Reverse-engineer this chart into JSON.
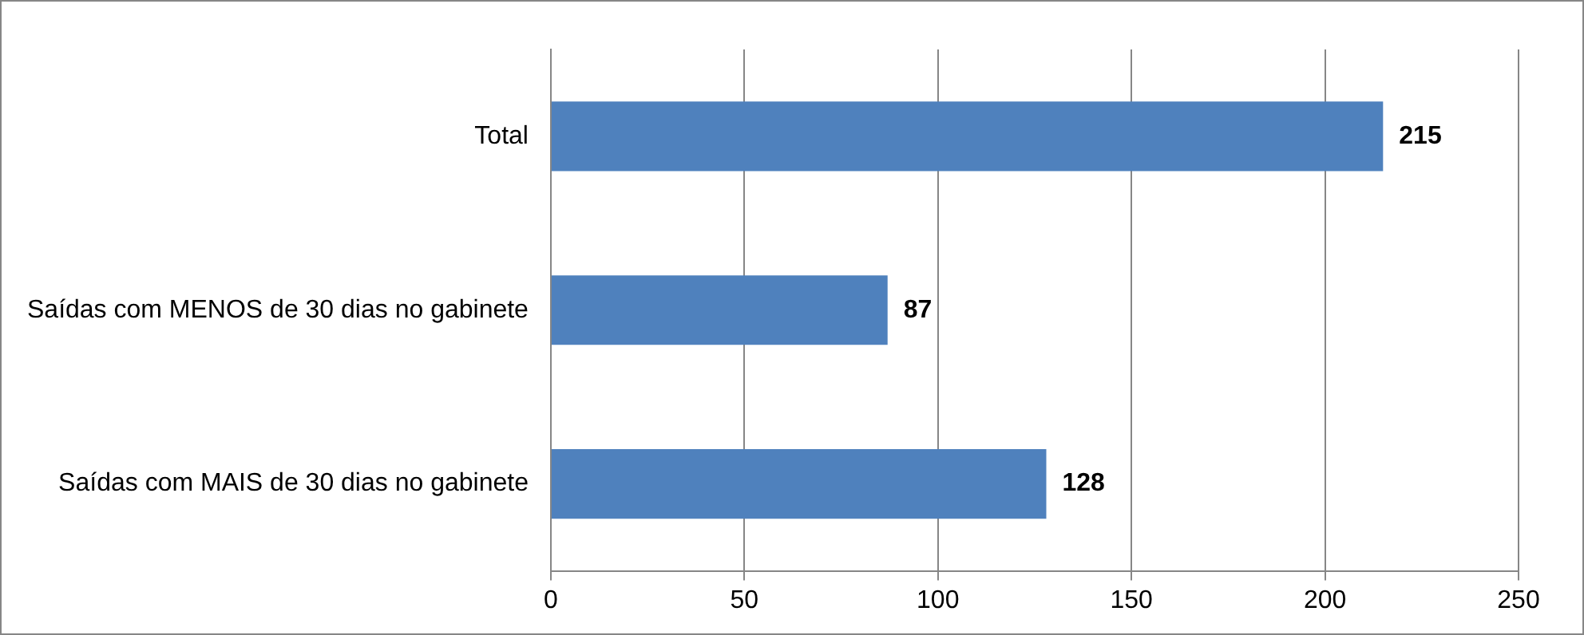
{
  "chart_data": {
    "type": "bar",
    "orientation": "horizontal",
    "categories": [
      "Total",
      "Saídas com MENOS de 30 dias no gabinete",
      "Saídas com MAIS de 30 dias no gabinete"
    ],
    "values": [
      215,
      87,
      128
    ],
    "color": "#4f81bd",
    "xlim": [
      0,
      250
    ],
    "xticks": [
      0,
      50,
      100,
      150,
      200,
      250
    ],
    "grid": "x",
    "data_labels": true
  }
}
